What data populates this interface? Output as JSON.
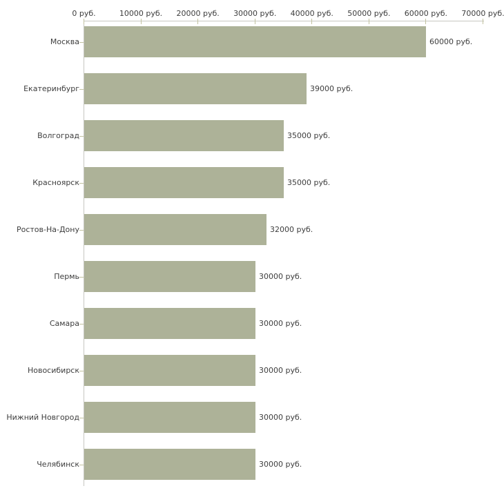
{
  "chart_data": {
    "type": "bar",
    "orientation": "horizontal",
    "categories": [
      "Москва",
      "Екатеринбург",
      "Волгоград",
      "Красноярск",
      "Ростов-На-Дону",
      "Пермь",
      "Самара",
      "Новосибирск",
      "Нижний Новгород",
      "Челябинск"
    ],
    "values": [
      60000,
      39000,
      35000,
      35000,
      32000,
      30000,
      30000,
      30000,
      30000,
      30000
    ],
    "value_labels": [
      "60000 руб.",
      "39000 руб.",
      "35000 руб.",
      "35000 руб.",
      "32000 руб.",
      "30000 руб.",
      "30000 руб.",
      "30000 руб.",
      "30000 руб.",
      "30000 руб."
    ],
    "x_axis": {
      "position": "top",
      "min": 0,
      "max": 70000,
      "tick_step": 10000,
      "tick_labels": [
        "0 руб.",
        "10000 руб.",
        "20000 руб.",
        "30000 руб.",
        "40000 руб.",
        "50000 руб.",
        "60000 руб.",
        "70000 руб."
      ]
    },
    "unit": "руб.",
    "grid": false,
    "legend": false,
    "colors": {
      "bar": "#adb298",
      "axis_line": "#c6c6c0",
      "tick_mark": "#c2c2a0",
      "text": "#3d3d3d",
      "background": "#ffffff"
    }
  }
}
